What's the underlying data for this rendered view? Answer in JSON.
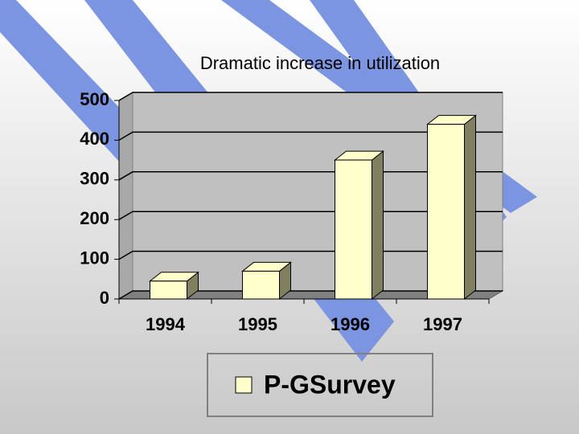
{
  "chart_data": {
    "type": "bar",
    "title": "Dramatic increase in utilization",
    "categories": [
      "1994",
      "1995",
      "1996",
      "1997"
    ],
    "series": [
      {
        "name": "P-GSurvey",
        "color": "#ffffcc",
        "values": [
          45,
          70,
          350,
          440
        ]
      }
    ],
    "ylim": [
      0,
      500
    ],
    "yticks": [
      0,
      100,
      200,
      300,
      400,
      500
    ],
    "grid": true
  }
}
